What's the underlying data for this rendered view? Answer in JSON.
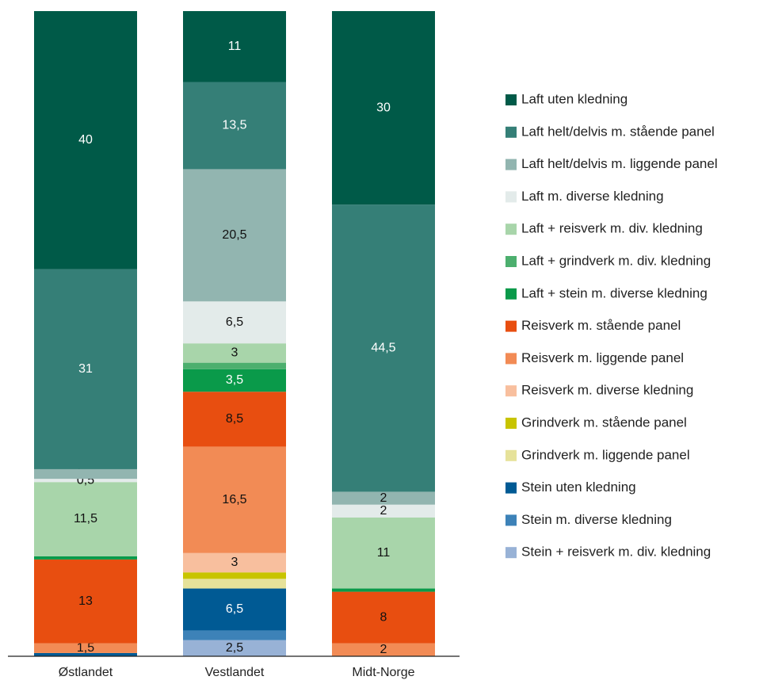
{
  "chart_data": {
    "type": "stacked_bar",
    "categories": [
      "Østlandet",
      "Vestlandet",
      "Midt-Norge"
    ],
    "ylim": [
      0,
      100
    ],
    "series": [
      {
        "name": "Laft uten kledning",
        "color": "#005a48",
        "values": [
          40,
          11,
          30
        ],
        "value_labels": [
          "40",
          "11",
          "30"
        ]
      },
      {
        "name": "Laft helt/delvis m. stående panel",
        "color": "#357f77",
        "values": [
          31,
          13.5,
          44.5
        ],
        "value_labels": [
          "31",
          "13,5",
          "44,5"
        ]
      },
      {
        "name": "Laft helt/delvis m. liggende panel",
        "color": "#92b5b0",
        "values": [
          1.5,
          20.5,
          2
        ],
        "value_labels": [
          "1,5",
          "20,5",
          "2"
        ]
      },
      {
        "name": "Laft m. diverse kledning",
        "color": "#e3ebea",
        "values": [
          0.5,
          6.5,
          2
        ],
        "value_labels": [
          "0,5",
          "6,5",
          "2"
        ]
      },
      {
        "name": "Laft + reisverk m. div. kledning",
        "color": "#a8d5aa",
        "values": [
          11.5,
          3,
          11
        ],
        "value_labels": [
          "11,5",
          "3",
          "11"
        ]
      },
      {
        "name": "Laft + grindverk m. div. kledning",
        "color": "#4caf6e",
        "values": [
          0,
          1,
          0
        ],
        "value_labels": [
          null,
          null,
          null
        ]
      },
      {
        "name": "Laft + stein m. diverse kledning",
        "color": "#0a9a4a",
        "values": [
          0.5,
          3.5,
          0.5
        ],
        "value_labels": [
          null,
          "3,5",
          null
        ]
      },
      {
        "name": "Reisverk m. stående panel",
        "color": "#e84e10",
        "values": [
          13,
          8.5,
          8
        ],
        "value_labels": [
          "13",
          "8,5",
          "8"
        ]
      },
      {
        "name": "Reisverk m. liggende panel",
        "color": "#f28b55",
        "values": [
          1.5,
          16.5,
          2
        ],
        "value_labels": [
          "1,5",
          "16,5",
          "2"
        ]
      },
      {
        "name": "Reisverk m. diverse kledning",
        "color": "#f8bf9e",
        "values": [
          0,
          3,
          0
        ],
        "value_labels": [
          null,
          "3",
          null
        ]
      },
      {
        "name": "Grindverk m. stående panel",
        "color": "#c8c400",
        "values": [
          0,
          1,
          0
        ],
        "value_labels": [
          null,
          null,
          null
        ]
      },
      {
        "name": "Grindverk m. liggende panel",
        "color": "#e6e29a",
        "values": [
          0,
          1.5,
          0
        ],
        "value_labels": [
          null,
          null,
          null
        ]
      },
      {
        "name": "Stein uten kledning",
        "color": "#005a94",
        "values": [
          0.5,
          6.5,
          0
        ],
        "value_labels": [
          null,
          "6,5",
          null
        ]
      },
      {
        "name": "Stein m. diverse kledning",
        "color": "#3d82b8",
        "values": [
          0,
          1.5,
          0
        ],
        "value_labels": [
          null,
          null,
          null
        ]
      },
      {
        "name": "Stein + reisverk m. div. kledning",
        "color": "#98b2d6",
        "values": [
          0,
          2.5,
          0
        ],
        "value_labels": [
          null,
          "2,5",
          null
        ]
      }
    ]
  }
}
